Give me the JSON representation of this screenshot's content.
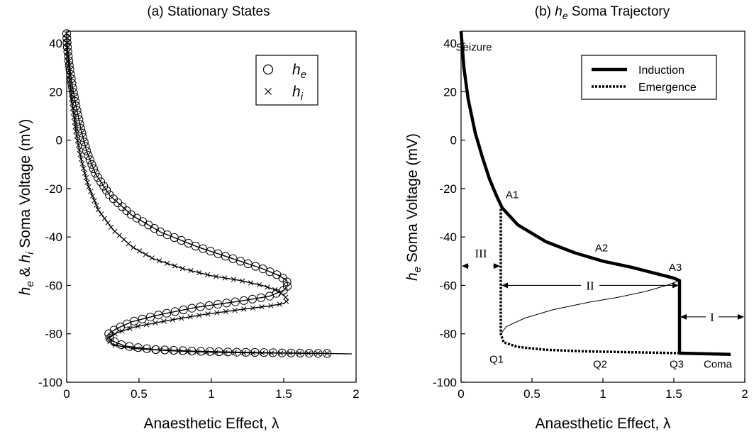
{
  "chart_data": [
    {
      "type": "line",
      "title": "(a)  Stationary States",
      "xlabel": "Anaesthetic Effect, λ",
      "ylabel": {
        "h_e": "h",
        "e_sub": "e",
        "amp": " & ",
        "h_i": "h",
        "i_sub": "i",
        "rest": "  Soma Voltage (mV)"
      },
      "xlim": [
        0,
        2
      ],
      "ylim": [
        -100,
        45
      ],
      "xticks": [
        "0",
        "0.5",
        "1",
        "1.5",
        "2"
      ],
      "yticks": [
        "-100",
        "-80",
        "-60",
        "-40",
        "-20",
        "0",
        "20",
        "40"
      ],
      "legend": {
        "position": "top-right",
        "entries": [
          {
            "symbol": "circle",
            "main": "h",
            "sub": "e"
          },
          {
            "symbol": "cross",
            "main": "h",
            "sub": "i"
          }
        ]
      },
      "series": [
        {
          "name": "h_e",
          "marker": "circle",
          "points": [
            [
              0.0,
              44
            ],
            [
              0.005,
              38
            ],
            [
              0.02,
              30
            ],
            [
              0.04,
              22
            ],
            [
              0.065,
              14
            ],
            [
              0.1,
              4
            ],
            [
              0.14,
              -5
            ],
            [
              0.2,
              -14
            ],
            [
              0.3,
              -23
            ],
            [
              0.45,
              -31
            ],
            [
              0.65,
              -38
            ],
            [
              0.9,
              -44
            ],
            [
              1.15,
              -49
            ],
            [
              1.35,
              -53
            ],
            [
              1.47,
              -56
            ],
            [
              1.52,
              -58
            ],
            [
              1.53,
              -60
            ],
            [
              1.5,
              -62
            ],
            [
              1.4,
              -64.5
            ],
            [
              1.2,
              -66.5
            ],
            [
              0.9,
              -69
            ],
            [
              0.65,
              -72
            ],
            [
              0.45,
              -75
            ],
            [
              0.34,
              -78
            ],
            [
              0.29,
              -80
            ],
            [
              0.3,
              -82.5
            ],
            [
              0.4,
              -85
            ],
            [
              0.6,
              -86.5
            ],
            [
              0.9,
              -87.2
            ],
            [
              1.2,
              -87.6
            ],
            [
              1.5,
              -87.9
            ],
            [
              1.8,
              -88.1
            ]
          ]
        },
        {
          "name": "h_i",
          "marker": "cross",
          "points": [
            [
              0.0,
              44
            ],
            [
              0.005,
              38
            ],
            [
              0.02,
              26
            ],
            [
              0.04,
              14
            ],
            [
              0.065,
              3
            ],
            [
              0.1,
              -8
            ],
            [
              0.15,
              -19
            ],
            [
              0.22,
              -29
            ],
            [
              0.32,
              -37
            ],
            [
              0.45,
              -44
            ],
            [
              0.6,
              -49
            ],
            [
              0.8,
              -53
            ],
            [
              1.0,
              -56
            ],
            [
              1.2,
              -58
            ],
            [
              1.35,
              -60
            ],
            [
              1.45,
              -62
            ],
            [
              1.5,
              -64
            ],
            [
              1.53,
              -66
            ],
            [
              1.5,
              -67.5
            ],
            [
              1.4,
              -68.5
            ],
            [
              1.2,
              -70
            ],
            [
              0.95,
              -72
            ],
            [
              0.7,
              -74.5
            ],
            [
              0.48,
              -77
            ],
            [
              0.35,
              -79.5
            ],
            [
              0.28,
              -82
            ],
            [
              0.32,
              -84.5
            ],
            [
              0.45,
              -86
            ],
            [
              0.7,
              -87
            ],
            [
              1.0,
              -87.6
            ],
            [
              1.3,
              -87.9
            ],
            [
              1.55,
              -88
            ],
            [
              1.8,
              -88.1
            ]
          ]
        },
        {
          "name": "curve",
          "marker": "none",
          "points": [
            [
              1.8,
              -88.1
            ],
            [
              1.97,
              -88.3
            ]
          ]
        }
      ]
    },
    {
      "type": "line",
      "title": {
        "prefix": "(b)  ",
        "h": "h",
        "sub": "e",
        "rest": "  Soma Trajectory"
      },
      "xlabel": "Anaesthetic Effect, λ",
      "ylabel": {
        "h": "h",
        "sub": "e",
        "rest": "  Soma Voltage (mV)"
      },
      "xlim": [
        0,
        2
      ],
      "ylim": [
        -100,
        45
      ],
      "xticks": [
        "0",
        "0.5",
        "1",
        "1.5",
        "2"
      ],
      "yticks": [
        "-100",
        "-80",
        "-60",
        "-40",
        "-20",
        "0",
        "20",
        "40"
      ],
      "legend": {
        "position": "top-right",
        "entries": [
          {
            "style": "solid",
            "label": "Induction"
          },
          {
            "style": "dotted",
            "label": "Emergence"
          }
        ]
      },
      "series": [
        {
          "name": "Induction",
          "style": "solid",
          "points": [
            [
              0.0,
              45
            ],
            [
              0.02,
              30
            ],
            [
              0.05,
              17
            ],
            [
              0.1,
              3
            ],
            [
              0.15,
              -7
            ],
            [
              0.2,
              -16
            ],
            [
              0.25,
              -23
            ],
            [
              0.29,
              -28
            ],
            [
              0.4,
              -35
            ],
            [
              0.6,
              -42
            ],
            [
              0.8,
              -46.5
            ],
            [
              1.0,
              -50
            ],
            [
              1.2,
              -52.5
            ],
            [
              1.4,
              -55.5
            ],
            [
              1.5,
              -57
            ],
            [
              1.54,
              -58
            ],
            [
              1.54,
              -88
            ],
            [
              1.9,
              -88.5
            ]
          ]
        },
        {
          "name": "Emergence",
          "style": "dotted",
          "points": [
            [
              1.54,
              -88
            ],
            [
              1.2,
              -87.6
            ],
            [
              0.9,
              -87.3
            ],
            [
              0.6,
              -86.6
            ],
            [
              0.4,
              -85.4
            ],
            [
              0.3,
              -83.5
            ],
            [
              0.28,
              -80
            ],
            [
              0.28,
              -28
            ]
          ]
        },
        {
          "name": "unstable-branch",
          "style": "thin",
          "points": [
            [
              0.28,
              -80
            ],
            [
              0.32,
              -77
            ],
            [
              0.45,
              -73.5
            ],
            [
              0.65,
              -70
            ],
            [
              0.9,
              -67
            ],
            [
              1.1,
              -65
            ],
            [
              1.3,
              -62.5
            ],
            [
              1.45,
              -60
            ],
            [
              1.54,
              -58
            ]
          ]
        }
      ],
      "annotations": [
        {
          "text": "Seizure",
          "x": 0.09,
          "y": 37
        },
        {
          "text": "A1",
          "x": 0.36,
          "y": -24
        },
        {
          "text": "A2",
          "x": 0.99,
          "y": -46
        },
        {
          "text": "A3",
          "x": 1.51,
          "y": -54
        },
        {
          "text": "Q1",
          "x": 0.25,
          "y": -92
        },
        {
          "text": "Q2",
          "x": 0.98,
          "y": -94
        },
        {
          "text": "Q3",
          "x": 1.52,
          "y": -94
        },
        {
          "text": "Coma",
          "x": 1.81,
          "y": -94
        }
      ],
      "regions": [
        {
          "label": "III",
          "from": 0.0,
          "to": 0.28,
          "y": -52
        },
        {
          "label": "II",
          "from": 0.28,
          "to": 1.54,
          "y": -60
        },
        {
          "label": "I",
          "from": 1.54,
          "to": 2.0,
          "y": -73
        }
      ]
    }
  ]
}
